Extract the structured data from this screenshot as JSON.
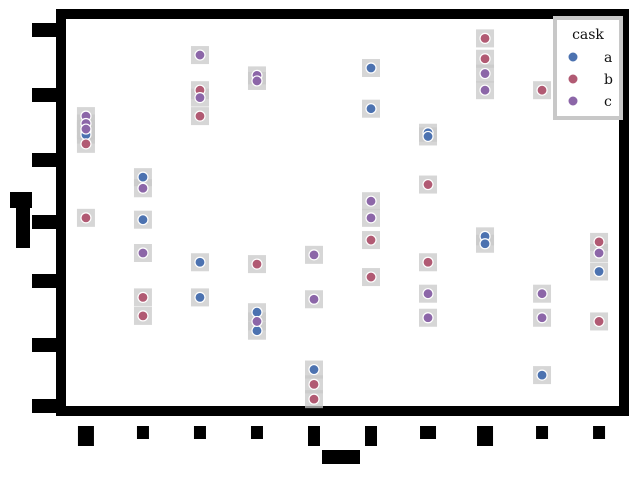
{
  "chart_data": {
    "type": "scatter",
    "title": "",
    "xlabel": "",
    "ylabel": "",
    "x_categories": [
      0,
      1,
      2,
      3,
      4,
      5,
      6,
      7,
      8,
      9
    ],
    "xlim": [
      -0.35,
      9.35
    ],
    "ylim": [
      0,
      100
    ],
    "grid": false,
    "legend": {
      "title": "cask",
      "placement": "top-right"
    },
    "marker_style": {
      "halo_color": "#c8c8c8",
      "edge_color": "#ffffff"
    },
    "series": [
      {
        "name": "a",
        "color": "#4c72b0",
        "points": [
          {
            "x": 0,
            "y": 73
          },
          {
            "x": 0,
            "y": 72
          },
          {
            "x": 1,
            "y": 60.5
          },
          {
            "x": 1,
            "y": 49
          },
          {
            "x": 2,
            "y": 37.5
          },
          {
            "x": 2,
            "y": 28
          },
          {
            "x": 3,
            "y": 24
          },
          {
            "x": 3,
            "y": 19
          },
          {
            "x": 4,
            "y": 8.5
          },
          {
            "x": 5,
            "y": 90
          },
          {
            "x": 5,
            "y": 79
          },
          {
            "x": 6,
            "y": 72.5
          },
          {
            "x": 6,
            "y": 71.5
          },
          {
            "x": 7,
            "y": 44.5
          },
          {
            "x": 7,
            "y": 42.5
          },
          {
            "x": 8,
            "y": 7
          },
          {
            "x": 9,
            "y": 35
          }
        ]
      },
      {
        "name": "b",
        "color": "#b15a73",
        "points": [
          {
            "x": 0,
            "y": 69.5
          },
          {
            "x": 0,
            "y": 49.5
          },
          {
            "x": 1,
            "y": 28
          },
          {
            "x": 1,
            "y": 23
          },
          {
            "x": 2,
            "y": 84
          },
          {
            "x": 2,
            "y": 77
          },
          {
            "x": 3,
            "y": 37
          },
          {
            "x": 4,
            "y": 4.5
          },
          {
            "x": 4,
            "y": 0.5
          },
          {
            "x": 5,
            "y": 43.5
          },
          {
            "x": 5,
            "y": 33.5
          },
          {
            "x": 6,
            "y": 58.5
          },
          {
            "x": 6,
            "y": 37.5
          },
          {
            "x": 7,
            "y": 98
          },
          {
            "x": 7,
            "y": 92.5
          },
          {
            "x": 8,
            "y": 84
          },
          {
            "x": 9,
            "y": 43
          },
          {
            "x": 9,
            "y": 21.5
          }
        ]
      },
      {
        "name": "c",
        "color": "#8c66a8",
        "points": [
          {
            "x": 0,
            "y": 77
          },
          {
            "x": 0,
            "y": 75
          },
          {
            "x": 0,
            "y": 73.5
          },
          {
            "x": 1,
            "y": 57.5
          },
          {
            "x": 1,
            "y": 40
          },
          {
            "x": 2,
            "y": 93.5
          },
          {
            "x": 2,
            "y": 82
          },
          {
            "x": 3,
            "y": 88
          },
          {
            "x": 3,
            "y": 86.5
          },
          {
            "x": 3,
            "y": 21.5
          },
          {
            "x": 4,
            "y": 39.5
          },
          {
            "x": 4,
            "y": 27.5
          },
          {
            "x": 5,
            "y": 54
          },
          {
            "x": 5,
            "y": 49.5
          },
          {
            "x": 6,
            "y": 29
          },
          {
            "x": 6,
            "y": 22.5
          },
          {
            "x": 7,
            "y": 88.5
          },
          {
            "x": 7,
            "y": 84
          },
          {
            "x": 8,
            "y": 29
          },
          {
            "x": 8,
            "y": 22.5
          },
          {
            "x": 9,
            "y": 40
          }
        ]
      }
    ]
  }
}
